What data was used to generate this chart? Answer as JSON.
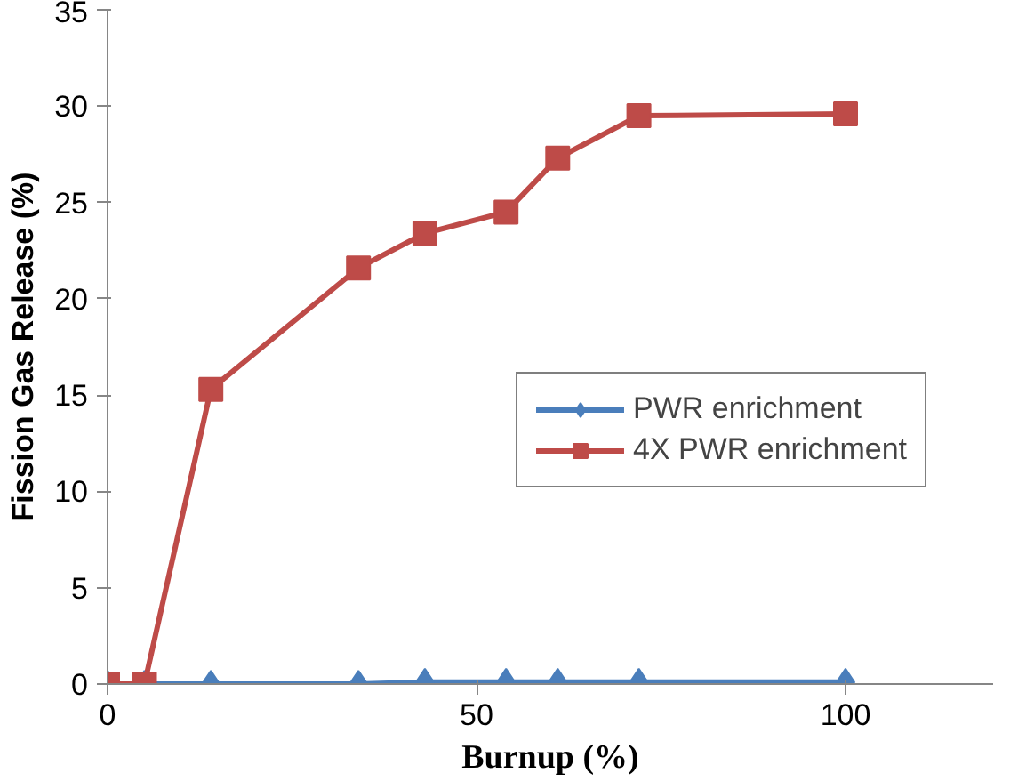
{
  "chart_data": {
    "type": "line",
    "xlabel": "Burnup (%)",
    "ylabel": "Fission Gas Release (%)",
    "xlim": [
      0,
      120
    ],
    "xticks": [
      0,
      50,
      100
    ],
    "ylim": [
      0,
      35
    ],
    "yticks": [
      0,
      5,
      10,
      15,
      20,
      25,
      30,
      35
    ],
    "grid": false,
    "legend": "right",
    "series": [
      {
        "name": "PWR enrichment",
        "color": "#4a7ebb",
        "marker": "diamond",
        "x": [
          0,
          5,
          14,
          34,
          43,
          54,
          61,
          72,
          100
        ],
        "values": [
          0,
          0,
          0,
          0,
          0.1,
          0.1,
          0.1,
          0.1,
          0.1
        ]
      },
      {
        "name": "4X PWR enrichment",
        "color": "#be4b48",
        "marker": "square",
        "x": [
          0,
          5,
          14,
          34,
          43,
          54,
          61,
          72,
          100
        ],
        "values": [
          0,
          0,
          15.3,
          21.6,
          23.4,
          24.5,
          27.3,
          29.5,
          29.6
        ]
      }
    ]
  }
}
